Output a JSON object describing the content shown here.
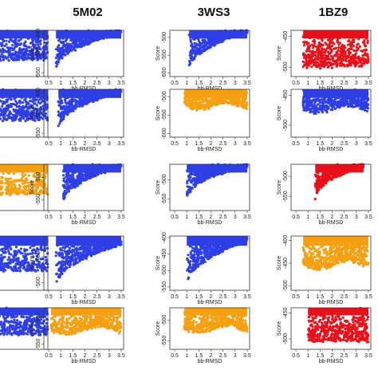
{
  "colors": {
    "blue": "#2f3fe6",
    "orange": "#f5a011",
    "red": "#e8101a"
  },
  "chart_data": {
    "type": "scatter",
    "column_titles": [
      "5M02",
      "3WS3",
      "1BZ9"
    ],
    "xlabel": "bb-RMSD",
    "ylabel": "Score",
    "x_ticks": [
      "0.5",
      "1",
      "1.5",
      "2",
      "2.5",
      "3",
      "3.5"
    ],
    "xlim": [
      0.3,
      3.6
    ],
    "panels": [
      {
        "row": 0,
        "col": -1,
        "color": "blue",
        "y_ticks": [],
        "ylim": [
          -600,
          -430
        ],
        "shape": "dense",
        "xmin": 0.3,
        "xmax": 3.6,
        "ytop": -430,
        "ybot": -560
      },
      {
        "row": 0,
        "col": 0,
        "color": "blue",
        "y_ticks": [
          "-450",
          "-500",
          "-550"
        ],
        "ylim": [
          -560,
          -440
        ],
        "shape": "wedge",
        "xmin": 0.8,
        "xmax": 3.5,
        "ytop": -440,
        "ybot": -545
      },
      {
        "row": 0,
        "col": 1,
        "color": "blue",
        "y_ticks": [
          "-500",
          "-550",
          "-600"
        ],
        "ylim": [
          -610,
          -480
        ],
        "shape": "wedge",
        "xmin": 1.1,
        "xmax": 3.5,
        "ytop": -480,
        "ybot": -590
      },
      {
        "row": 0,
        "col": 2,
        "color": "red",
        "y_ticks": [
          "-450",
          "-500"
        ],
        "ylim": [
          -515,
          -440
        ],
        "shape": "dense",
        "xmin": 0.8,
        "xmax": 3.5,
        "ytop": -440,
        "ybot": -510
      },
      {
        "row": 1,
        "col": -1,
        "color": "blue",
        "y_ticks": [],
        "ylim": [
          -600,
          -430
        ],
        "shape": "dense",
        "xmin": 0.3,
        "xmax": 3.6,
        "ytop": -430,
        "ybot": -560
      },
      {
        "row": 1,
        "col": 0,
        "color": "blue",
        "y_ticks": [
          "-450",
          "-500",
          "-550"
        ],
        "ylim": [
          -560,
          -440
        ],
        "shape": "wedge",
        "xmin": 0.9,
        "xmax": 3.5,
        "ytop": -440,
        "ybot": -540
      },
      {
        "row": 1,
        "col": 1,
        "color": "orange",
        "y_ticks": [
          "-500",
          "-550",
          "-600"
        ],
        "ylim": [
          -610,
          -480
        ],
        "shape": "band",
        "xmin": 0.9,
        "xmax": 3.5,
        "ytop": -480,
        "ybot": -565
      },
      {
        "row": 1,
        "col": 2,
        "color": "blue",
        "y_ticks": [
          "-450",
          "-500"
        ],
        "ylim": [
          -520,
          -440
        ],
        "shape": "band",
        "xmin": 0.8,
        "xmax": 3.5,
        "ytop": -440,
        "ybot": -500
      },
      {
        "row": 2,
        "col": -1,
        "color": "orange",
        "y_ticks": [],
        "ylim": [
          -600,
          -430
        ],
        "shape": "dense",
        "xmin": 0.3,
        "xmax": 3.6,
        "ytop": -430,
        "ybot": -560
      },
      {
        "row": 2,
        "col": 0,
        "color": "blue",
        "y_ticks": [
          "-500",
          "-550"
        ],
        "ylim": [
          -575,
          -470
        ],
        "shape": "wedge",
        "xmin": 1.1,
        "xmax": 3.5,
        "ytop": -470,
        "ybot": -560
      },
      {
        "row": 2,
        "col": 1,
        "color": "blue",
        "y_ticks": [
          "-500",
          "-550"
        ],
        "ylim": [
          -580,
          -460
        ],
        "shape": "spike",
        "xmin": 1.0,
        "xmax": 3.5,
        "ytop": -460,
        "ybot": -570
      },
      {
        "row": 2,
        "col": 2,
        "color": "red",
        "y_ticks": [
          "-500",
          "-550"
        ],
        "ylim": [
          -585,
          -470
        ],
        "shape": "spike",
        "xmin": 1.3,
        "xmax": 3.3,
        "ytop": -470,
        "ybot": -575
      },
      {
        "row": 3,
        "col": -1,
        "color": "blue",
        "y_ticks": [],
        "ylim": [
          -600,
          -430
        ],
        "shape": "dense",
        "xmin": 0.3,
        "xmax": 3.6,
        "ytop": -430,
        "ybot": -560
      },
      {
        "row": 3,
        "col": 0,
        "color": "blue",
        "y_ticks": [
          "-450",
          "-500"
        ],
        "ylim": [
          -515,
          -410
        ],
        "shape": "wedge",
        "xmin": 0.8,
        "xmax": 3.5,
        "ytop": -420,
        "ybot": -510
      },
      {
        "row": 3,
        "col": 1,
        "color": "blue",
        "y_ticks": [
          "-400",
          "-450",
          "-500",
          "-550"
        ],
        "ylim": [
          -560,
          -395
        ],
        "shape": "wedge",
        "xmin": 1.0,
        "xmax": 3.5,
        "ytop": -400,
        "ybot": -550
      },
      {
        "row": 3,
        "col": 2,
        "color": "orange",
        "y_ticks": [
          "-400",
          "-450",
          "-500"
        ],
        "ylim": [
          -510,
          -390
        ],
        "shape": "band",
        "xmin": 0.8,
        "xmax": 3.5,
        "ytop": -400,
        "ybot": -500
      },
      {
        "row": 4,
        "col": -1,
        "color": "blue",
        "y_ticks": [],
        "ylim": [
          -600,
          -430
        ],
        "shape": "dense",
        "xmin": 0.3,
        "xmax": 3.6,
        "ytop": -430,
        "ybot": -560
      },
      {
        "row": 4,
        "col": 0,
        "color": "orange",
        "y_ticks": [
          "-500",
          "-550"
        ],
        "ylim": [
          -560,
          -480
        ],
        "shape": "band",
        "xmin": 0.6,
        "xmax": 3.5,
        "ytop": -485,
        "ybot": -555
      },
      {
        "row": 4,
        "col": 1,
        "color": "orange",
        "y_ticks": [
          "-500",
          "-550"
        ],
        "ylim": [
          -570,
          -470
        ],
        "shape": "band",
        "xmin": 0.9,
        "xmax": 3.5,
        "ytop": -475,
        "ybot": -560
      },
      {
        "row": 4,
        "col": 2,
        "color": "red",
        "y_ticks": [
          "-450",
          "-500"
        ],
        "ylim": [
          -520,
          -440
        ],
        "shape": "dense",
        "xmin": 1.0,
        "xmax": 3.5,
        "ytop": -440,
        "ybot": -515
      }
    ]
  }
}
